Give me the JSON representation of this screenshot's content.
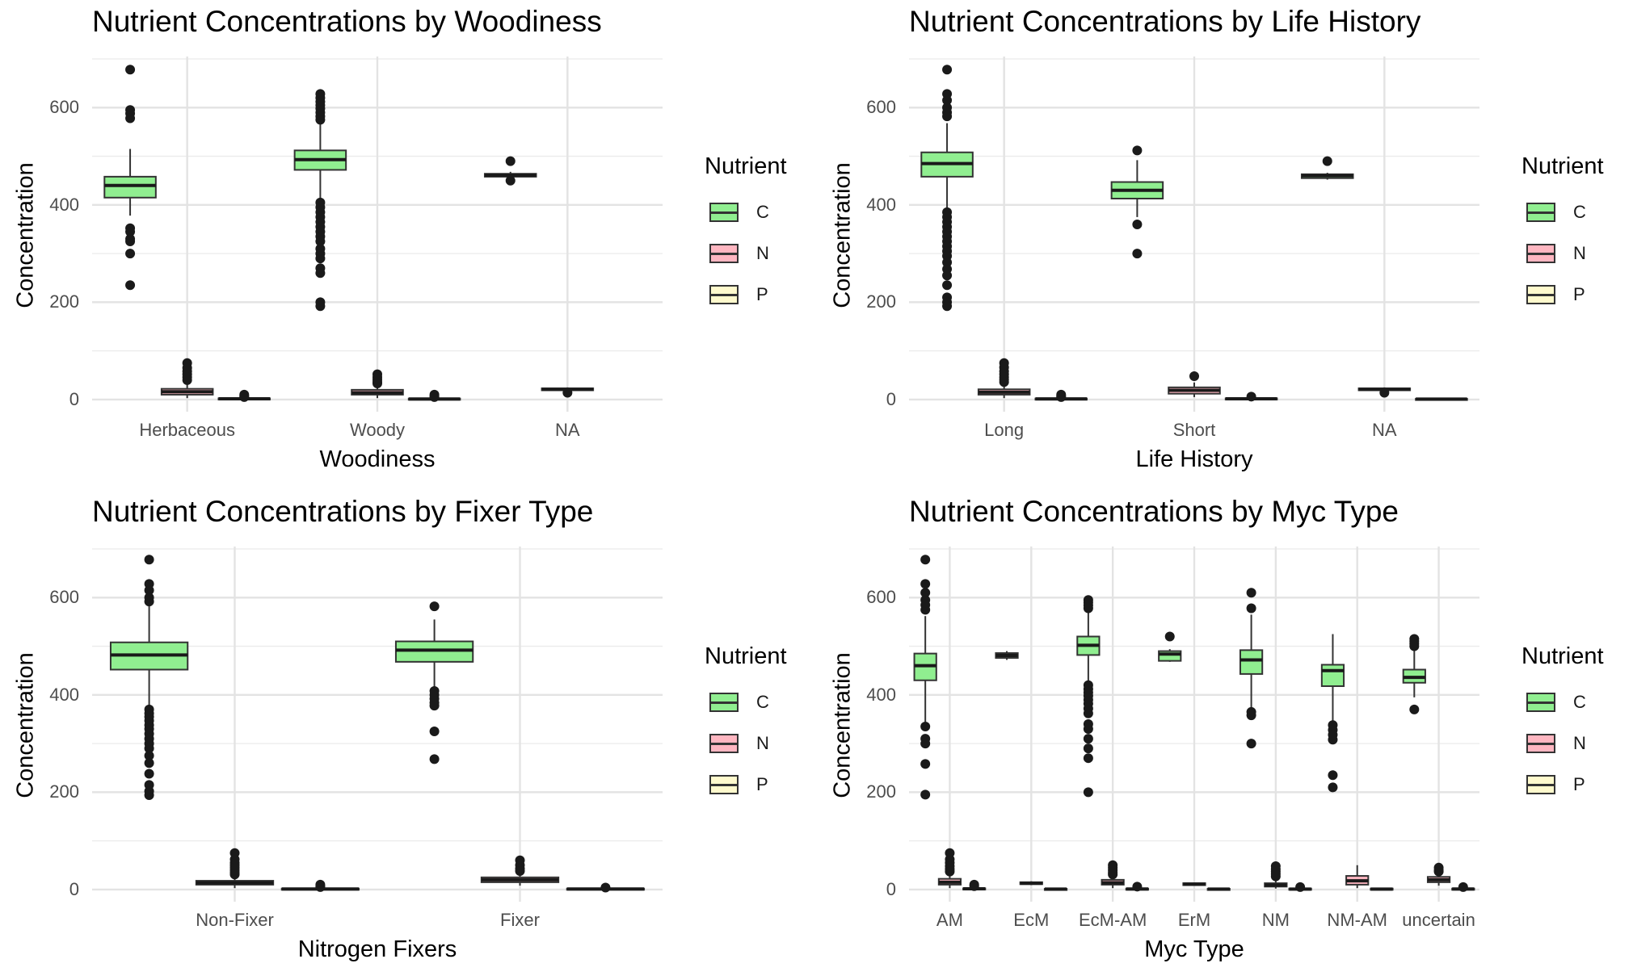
{
  "legend": {
    "title": "Nutrient",
    "items": [
      {
        "label": "C",
        "color": "#90ee90"
      },
      {
        "label": "N",
        "color": "#ffb6c1"
      },
      {
        "label": "P",
        "color": "#fffacd"
      }
    ]
  },
  "chart_data": [
    {
      "type": "box",
      "title": "Nutrient Concentrations by Woodiness",
      "xlabel": "Woodiness",
      "ylabel": "Concentration",
      "ylim": [
        -25,
        705
      ],
      "y_ticks": [
        0,
        200,
        400,
        600
      ],
      "categories": [
        "Herbaceous",
        "Woody",
        "NA"
      ],
      "series_names": [
        "C",
        "N",
        "P"
      ],
      "boxes": [
        {
          "category": "Herbaceous",
          "series": "C",
          "q1": 415,
          "median": 440,
          "q3": 458,
          "whisker_low": 378,
          "whisker_high": 515,
          "outliers": [
            678,
            595,
            588,
            578,
            352,
            345,
            330,
            325,
            300,
            235
          ]
        },
        {
          "category": "Herbaceous",
          "series": "N",
          "q1": 10,
          "median": 16,
          "q3": 22,
          "whisker_low": 3,
          "whisker_high": 33,
          "outliers": [
            75,
            65,
            58,
            52,
            46,
            40
          ]
        },
        {
          "category": "Herbaceous",
          "series": "P",
          "q1": 0.5,
          "median": 1.5,
          "q3": 2.5,
          "whisker_low": 0,
          "whisker_high": 4,
          "outliers": [
            10,
            7,
            5
          ]
        },
        {
          "category": "Woody",
          "series": "C",
          "q1": 472,
          "median": 493,
          "q3": 512,
          "whisker_low": 412,
          "whisker_high": 568,
          "outliers": [
            628,
            620,
            612,
            605,
            598,
            590,
            582,
            575,
            405,
            395,
            385,
            375,
            365,
            355,
            345,
            335,
            325,
            310,
            300,
            290,
            270,
            260,
            200,
            192
          ]
        },
        {
          "category": "Woody",
          "series": "N",
          "q1": 10,
          "median": 14,
          "q3": 20,
          "whisker_low": 3,
          "whisker_high": 30,
          "outliers": [
            52,
            46,
            41,
            36,
            33
          ]
        },
        {
          "category": "Woody",
          "series": "P",
          "q1": 0.5,
          "median": 1.2,
          "q3": 2,
          "whisker_low": 0,
          "whisker_high": 3.5,
          "outliers": [
            10,
            7,
            5
          ]
        },
        {
          "category": "NA",
          "series": "C",
          "q1": 458,
          "median": 461,
          "q3": 464,
          "whisker_low": 455,
          "whisker_high": 468,
          "outliers": [
            490,
            450
          ]
        },
        {
          "category": "NA",
          "series": "N",
          "q1": 19,
          "median": 21,
          "q3": 23,
          "whisker_low": 18,
          "whisker_high": 25,
          "outliers": [
            14
          ]
        }
      ]
    },
    {
      "type": "box",
      "title": "Nutrient Concentrations by Life History",
      "xlabel": "Life History",
      "ylabel": "Concentration",
      "ylim": [
        -25,
        705
      ],
      "y_ticks": [
        0,
        200,
        400,
        600
      ],
      "categories": [
        "Long",
        "Short",
        "NA"
      ],
      "series_names": [
        "C",
        "N",
        "P"
      ],
      "boxes": [
        {
          "category": "Long",
          "series": "C",
          "q1": 458,
          "median": 485,
          "q3": 508,
          "whisker_low": 388,
          "whisker_high": 568,
          "outliers": [
            678,
            628,
            615,
            600,
            590,
            582,
            385,
            375,
            365,
            355,
            345,
            335,
            325,
            315,
            305,
            295,
            282,
            268,
            255,
            235,
            210,
            200,
            192
          ]
        },
        {
          "category": "Long",
          "series": "N",
          "q1": 10,
          "median": 15,
          "q3": 21,
          "whisker_low": 3,
          "whisker_high": 32,
          "outliers": [
            75,
            66,
            58,
            52,
            46,
            41,
            36
          ]
        },
        {
          "category": "Long",
          "series": "P",
          "q1": 0.5,
          "median": 1.3,
          "q3": 2.2,
          "whisker_low": 0,
          "whisker_high": 3.8,
          "outliers": [
            10,
            7,
            5
          ]
        },
        {
          "category": "Short",
          "series": "C",
          "q1": 413,
          "median": 430,
          "q3": 447,
          "whisker_low": 375,
          "whisker_high": 492,
          "outliers": [
            512,
            360,
            300
          ]
        },
        {
          "category": "Short",
          "series": "N",
          "q1": 12,
          "median": 19,
          "q3": 25,
          "whisker_low": 5,
          "whisker_high": 35,
          "outliers": [
            48
          ]
        },
        {
          "category": "Short",
          "series": "P",
          "q1": 0.5,
          "median": 1.5,
          "q3": 2.5,
          "whisker_low": 0,
          "whisker_high": 4,
          "outliers": [
            6
          ]
        },
        {
          "category": "NA",
          "series": "C",
          "q1": 455,
          "median": 460,
          "q3": 463,
          "whisker_low": 452,
          "whisker_high": 466,
          "outliers": [
            490
          ]
        },
        {
          "category": "NA",
          "series": "N",
          "q1": 19,
          "median": 21,
          "q3": 23,
          "whisker_low": 18,
          "whisker_high": 25,
          "outliers": [
            14
          ]
        },
        {
          "category": "NA",
          "series": "P",
          "q1": 0.5,
          "median": 1,
          "q3": 1.5,
          "whisker_low": 0.2,
          "whisker_high": 2,
          "outliers": []
        }
      ]
    },
    {
      "type": "box",
      "title": "Nutrient Concentrations by Fixer Type",
      "xlabel": "Nitrogen Fixers",
      "ylabel": "Concentration",
      "ylim": [
        -25,
        705
      ],
      "y_ticks": [
        0,
        200,
        400,
        600
      ],
      "categories": [
        "Non-Fixer",
        "Fixer"
      ],
      "series_names": [
        "C",
        "N",
        "P"
      ],
      "boxes": [
        {
          "category": "Non-Fixer",
          "series": "C",
          "q1": 452,
          "median": 482,
          "q3": 508,
          "whisker_low": 372,
          "whisker_high": 585,
          "outliers": [
            678,
            628,
            615,
            600,
            592,
            370,
            362,
            355,
            347,
            338,
            330,
            320,
            310,
            300,
            290,
            275,
            260,
            238,
            215,
            202,
            194
          ]
        },
        {
          "category": "Non-Fixer",
          "series": "N",
          "q1": 10,
          "median": 14,
          "q3": 18,
          "whisker_low": 3,
          "whisker_high": 28,
          "outliers": [
            75,
            62,
            55,
            50,
            45,
            40,
            35,
            31
          ]
        },
        {
          "category": "Non-Fixer",
          "series": "P",
          "q1": 0.5,
          "median": 1.2,
          "q3": 2,
          "whisker_low": 0,
          "whisker_high": 3.5,
          "outliers": [
            10,
            7,
            5
          ]
        },
        {
          "category": "Fixer",
          "series": "C",
          "q1": 468,
          "median": 492,
          "q3": 510,
          "whisker_low": 412,
          "whisker_high": 555,
          "outliers": [
            582,
            408,
            400,
            392,
            384,
            378,
            325,
            268
          ]
        },
        {
          "category": "Fixer",
          "series": "N",
          "q1": 15,
          "median": 20,
          "q3": 25,
          "whisker_low": 8,
          "whisker_high": 33,
          "outliers": [
            60,
            50,
            43,
            38
          ]
        },
        {
          "category": "Fixer",
          "series": "P",
          "q1": 0.5,
          "median": 1.2,
          "q3": 2,
          "whisker_low": 0,
          "whisker_high": 3,
          "outliers": [
            4
          ]
        }
      ]
    },
    {
      "type": "box",
      "title": "Nutrient Concentrations by Myc Type",
      "xlabel": "Myc Type",
      "ylabel": "Concentration",
      "ylim": [
        -25,
        705
      ],
      "y_ticks": [
        0,
        200,
        400,
        600
      ],
      "categories": [
        "AM",
        "EcM",
        "EcM-AM",
        "ErM",
        "NM",
        "NM-AM",
        "uncertain"
      ],
      "series_names": [
        "C",
        "N",
        "P"
      ],
      "boxes": [
        {
          "category": "AM",
          "series": "C",
          "q1": 430,
          "median": 460,
          "q3": 485,
          "whisker_low": 345,
          "whisker_high": 562,
          "outliers": [
            678,
            628,
            610,
            595,
            585,
            575,
            335,
            310,
            300,
            258,
            195
          ]
        },
        {
          "category": "AM",
          "series": "N",
          "q1": 10,
          "median": 15,
          "q3": 22,
          "whisker_low": 3,
          "whisker_high": 32,
          "outliers": [
            75,
            62,
            55,
            48,
            42,
            37
          ]
        },
        {
          "category": "AM",
          "series": "P",
          "q1": 0.5,
          "median": 1.5,
          "q3": 2.5,
          "whisker_low": 0,
          "whisker_high": 4,
          "outliers": [
            10,
            7
          ]
        },
        {
          "category": "EcM",
          "series": "C",
          "q1": 476,
          "median": 481,
          "q3": 486,
          "whisker_low": 472,
          "whisker_high": 490,
          "outliers": []
        },
        {
          "category": "EcM",
          "series": "N",
          "q1": 11,
          "median": 13,
          "q3": 15,
          "whisker_low": 9,
          "whisker_high": 17,
          "outliers": []
        },
        {
          "category": "EcM",
          "series": "P",
          "q1": 0.5,
          "median": 1,
          "q3": 1.5,
          "whisker_low": 0.2,
          "whisker_high": 2,
          "outliers": []
        },
        {
          "category": "EcM-AM",
          "series": "C",
          "q1": 482,
          "median": 502,
          "q3": 520,
          "whisker_low": 428,
          "whisker_high": 578,
          "outliers": [
            595,
            590,
            584,
            578,
            420,
            412,
            405,
            398,
            390,
            382,
            372,
            362,
            340,
            330,
            310,
            290,
            270,
            200
          ]
        },
        {
          "category": "EcM-AM",
          "series": "N",
          "q1": 10,
          "median": 14,
          "q3": 20,
          "whisker_low": 3,
          "whisker_high": 30,
          "outliers": [
            50,
            45,
            40,
            35,
            31
          ]
        },
        {
          "category": "EcM-AM",
          "series": "P",
          "q1": 0.5,
          "median": 1.2,
          "q3": 2,
          "whisker_low": 0,
          "whisker_high": 3.5,
          "outliers": [
            6
          ]
        },
        {
          "category": "ErM",
          "series": "C",
          "q1": 470,
          "median": 484,
          "q3": 490,
          "whisker_low": 468,
          "whisker_high": 494,
          "outliers": [
            520
          ]
        },
        {
          "category": "ErM",
          "series": "N",
          "q1": 9,
          "median": 11,
          "q3": 13,
          "whisker_low": 8,
          "whisker_high": 14,
          "outliers": []
        },
        {
          "category": "ErM",
          "series": "P",
          "q1": 0.5,
          "median": 1,
          "q3": 1.5,
          "whisker_low": 0.2,
          "whisker_high": 2,
          "outliers": []
        },
        {
          "category": "NM",
          "series": "C",
          "q1": 443,
          "median": 472,
          "q3": 492,
          "whisker_low": 372,
          "whisker_high": 565,
          "outliers": [
            610,
            578,
            365,
            358,
            300
          ]
        },
        {
          "category": "NM",
          "series": "N",
          "q1": 6,
          "median": 9,
          "q3": 13,
          "whisker_low": 2,
          "whisker_high": 22,
          "outliers": [
            48,
            42,
            37,
            32,
            27
          ]
        },
        {
          "category": "NM",
          "series": "P",
          "q1": 0.5,
          "median": 1,
          "q3": 2,
          "whisker_low": 0,
          "whisker_high": 3,
          "outliers": [
            5
          ]
        },
        {
          "category": "NM-AM",
          "series": "C",
          "q1": 418,
          "median": 450,
          "q3": 462,
          "whisker_low": 345,
          "whisker_high": 525,
          "outliers": [
            338,
            328,
            318,
            308,
            235,
            210
          ]
        },
        {
          "category": "NM-AM",
          "series": "N",
          "q1": 10,
          "median": 18,
          "q3": 28,
          "whisker_low": 3,
          "whisker_high": 50,
          "outliers": []
        },
        {
          "category": "NM-AM",
          "series": "P",
          "q1": 0.5,
          "median": 1,
          "q3": 2,
          "whisker_low": 0,
          "whisker_high": 3,
          "outliers": []
        },
        {
          "category": "uncertain",
          "series": "C",
          "q1": 425,
          "median": 436,
          "q3": 452,
          "whisker_low": 395,
          "whisker_high": 495,
          "outliers": [
            515,
            510,
            505,
            500,
            370
          ]
        },
        {
          "category": "uncertain",
          "series": "N",
          "q1": 15,
          "median": 20,
          "q3": 26,
          "whisker_low": 8,
          "whisker_high": 33,
          "outliers": [
            45,
            40,
            37
          ]
        },
        {
          "category": "uncertain",
          "series": "P",
          "q1": 0.5,
          "median": 1.2,
          "q3": 2,
          "whisker_low": 0,
          "whisker_high": 3,
          "outliers": [
            5
          ]
        }
      ]
    }
  ]
}
